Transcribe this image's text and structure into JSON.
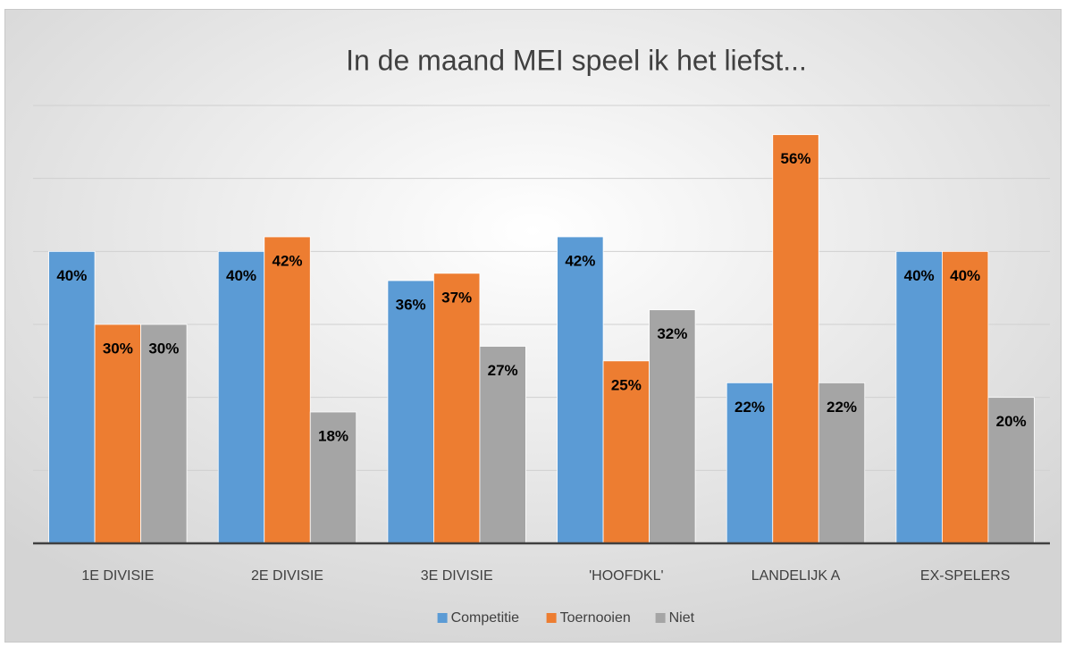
{
  "chart_data": {
    "type": "bar",
    "title": "In de maand MEI speel ik het liefst...",
    "categories": [
      "1E DIVISIE",
      "2E DIVISIE",
      "3E DIVISIE",
      "'HOOFDKL'",
      "LANDELIJK A",
      "EX-SPELERS"
    ],
    "series": [
      {
        "name": "Competitie",
        "color": "#5b9bd5",
        "values": [
          40,
          40,
          36,
          42,
          22,
          40
        ],
        "value_labels": [
          "40%",
          "40%",
          "36%",
          "42%",
          "22%",
          "40%"
        ]
      },
      {
        "name": "Toernooien",
        "color": "#ed7d31",
        "values": [
          30,
          42,
          37,
          25,
          56,
          40
        ],
        "value_labels": [
          "30%",
          "42%",
          "37%",
          "25%",
          "56%",
          "40%"
        ]
      },
      {
        "name": "Niet",
        "color": "#a5a5a5",
        "values": [
          30,
          18,
          27,
          32,
          22,
          20
        ],
        "value_labels": [
          "30%",
          "18%",
          "27%",
          "32%",
          "22%",
          "20%"
        ]
      }
    ],
    "ylim": [
      0,
      60
    ],
    "yticks": [
      0,
      10,
      20,
      30,
      40,
      50,
      60
    ],
    "grid": true,
    "legend": "bottom"
  }
}
